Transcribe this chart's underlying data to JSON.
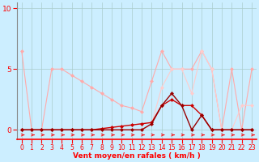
{
  "title": "",
  "xlabel": "Vent moyen/en rafales ( km/h )",
  "background_color": "#cceeff",
  "grid_color": "#aacccc",
  "xlim": [
    0,
    23
  ],
  "ylim": [
    -0.8,
    10.5
  ],
  "yticks": [
    0,
    5,
    10
  ],
  "xticks": [
    0,
    1,
    2,
    3,
    4,
    5,
    6,
    7,
    8,
    9,
    10,
    11,
    12,
    13,
    14,
    15,
    16,
    17,
    18,
    19,
    20,
    21,
    22,
    23
  ],
  "line_light_pink": {
    "y": [
      6.5,
      0.0,
      0.0,
      5.0,
      5.0,
      4.5,
      4.0,
      3.5,
      3.0,
      2.5,
      2.0,
      1.8,
      1.5,
      4.0,
      6.5,
      5.0,
      5.0,
      5.0,
      6.5,
      5.0,
      0.0,
      5.0,
      0.0,
      5.0
    ],
    "color": "#ffaaaa"
  },
  "line_pale_pink": {
    "y": [
      0.0,
      0.0,
      0.0,
      0.0,
      0.0,
      0.0,
      0.0,
      0.0,
      0.0,
      0.0,
      0.0,
      0.0,
      0.0,
      0.5,
      3.5,
      5.0,
      5.0,
      3.0,
      6.5,
      5.0,
      0.0,
      0.0,
      2.0,
      2.0
    ],
    "color": "#ffcccc"
  },
  "line_dark_red": {
    "y": [
      0.0,
      0.0,
      0.0,
      0.0,
      0.0,
      0.0,
      0.0,
      0.0,
      0.1,
      0.2,
      0.3,
      0.4,
      0.5,
      0.6,
      2.0,
      2.5,
      2.0,
      2.0,
      1.2,
      0.0,
      0.0,
      0.0,
      0.0,
      0.0
    ],
    "color": "#cc0000"
  },
  "line_black_red": {
    "y": [
      0.0,
      0.0,
      0.0,
      0.0,
      0.0,
      0.0,
      0.0,
      0.0,
      0.0,
      0.0,
      0.0,
      0.0,
      0.0,
      0.5,
      2.0,
      3.0,
      2.0,
      0.0,
      1.2,
      0.0,
      0.0,
      0.0,
      0.0,
      0.0
    ],
    "color": "#990000"
  },
  "marker_size": 2.5
}
